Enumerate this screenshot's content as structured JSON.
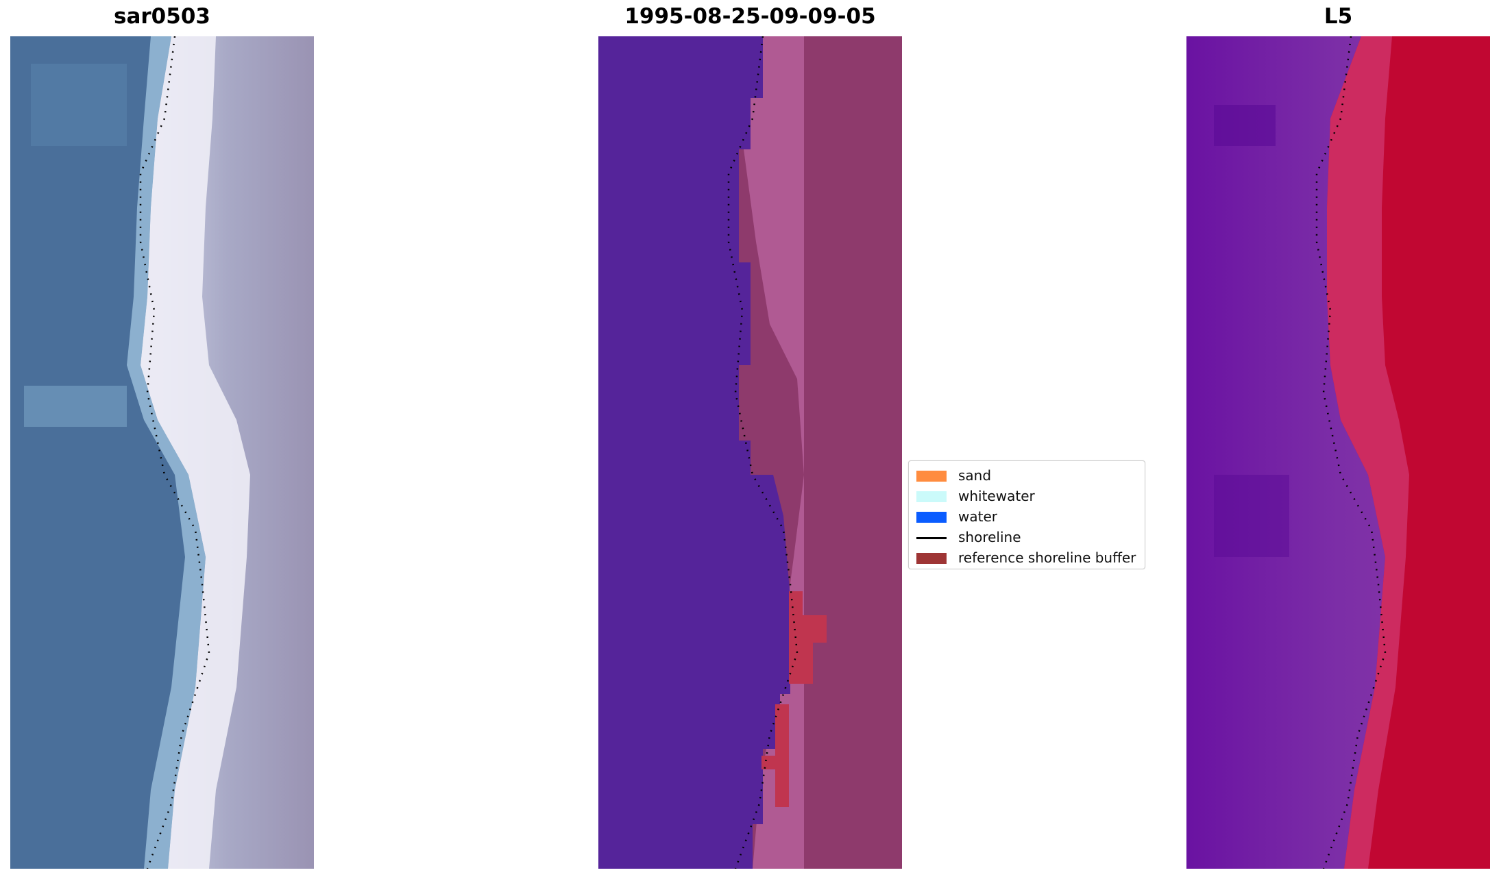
{
  "panels": {
    "rgb": {
      "title": "sar0503"
    },
    "class": {
      "title": "1995-08-25-09-09-05"
    },
    "index": {
      "title": "L5"
    }
  },
  "legend": {
    "items": [
      {
        "label": "sand",
        "type": "patch",
        "color": "#ff8c3f"
      },
      {
        "label": "whitewater",
        "type": "patch",
        "color": "#cbfafa"
      },
      {
        "label": "water",
        "type": "patch",
        "color": "#0a5cff"
      },
      {
        "label": "shoreline",
        "type": "line",
        "color": "#000000"
      },
      {
        "label": "reference shoreline buffer",
        "type": "patch",
        "color": "#9e3535"
      }
    ]
  },
  "colors": {
    "water_rgb": "#4a6f9a",
    "beach_rgb": "#ecebf4",
    "land_rgb": "#a3a3bd",
    "water_class": "#55249a",
    "sand_overlay": "#b05a93",
    "land_overlay": "#8e3a6c",
    "buffer": "#c0354f",
    "index_low": "#6a12a2",
    "index_high": "#c10732"
  }
}
